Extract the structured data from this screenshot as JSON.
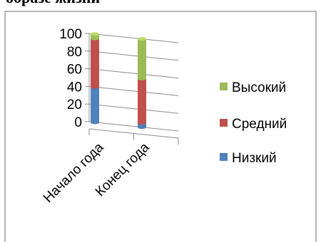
{
  "header_text": "образе жизни",
  "chart_data": {
    "type": "bar",
    "stacked": true,
    "three_d": true,
    "categories": [
      "Начало года",
      "Конец года"
    ],
    "series": [
      {
        "name": "Низкий",
        "values": [
          40,
          5
        ],
        "color": "#4f81bd"
      },
      {
        "name": "Средний",
        "values": [
          55,
          50
        ],
        "color": "#c0504d"
      },
      {
        "name": "Высокий",
        "values": [
          5,
          45
        ],
        "color": "#9bbb59"
      }
    ],
    "yticks": [
      0,
      20,
      40,
      60,
      80,
      100
    ],
    "ylim": [
      0,
      100
    ],
    "grid": true,
    "legend_position": "right"
  }
}
